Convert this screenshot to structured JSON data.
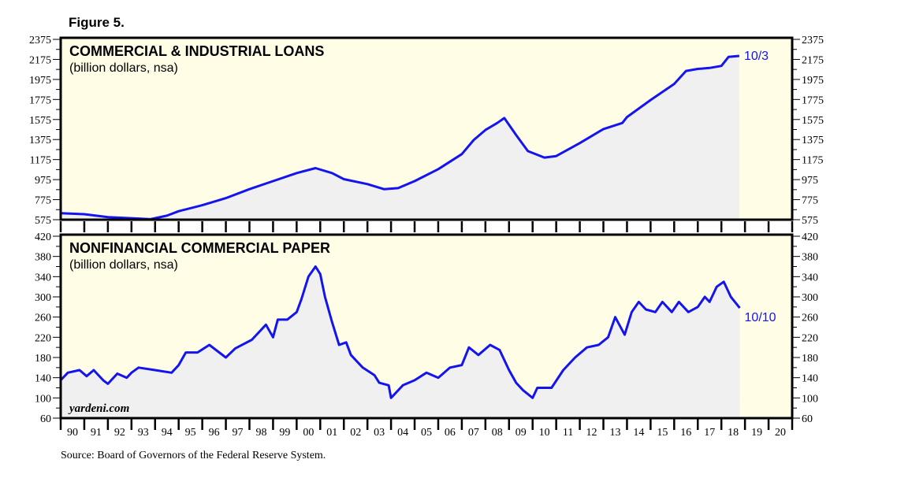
{
  "figure_title": "Figure 5.",
  "source": "Source: Board of Governors of the Federal Reserve System.",
  "watermark": "yardeni.com",
  "colors": {
    "line": "#1414ee",
    "plot_bg": "#fffde6",
    "fill": "#f0f0f0",
    "frame": "#000000"
  },
  "x_axis": {
    "range": [
      1990,
      2021
    ],
    "tick_labels": [
      "90",
      "91",
      "92",
      "93",
      "94",
      "95",
      "96",
      "97",
      "98",
      "99",
      "00",
      "01",
      "02",
      "03",
      "04",
      "05",
      "06",
      "07",
      "08",
      "09",
      "10",
      "11",
      "12",
      "13",
      "14",
      "15",
      "16",
      "17",
      "18",
      "19",
      "20"
    ]
  },
  "chart_data": [
    {
      "type": "area",
      "title": "COMMERCIAL & INDUSTRIAL LOANS",
      "subtitle": "(billion dollars, nsa)",
      "end_label": "10/3",
      "ylim": [
        575,
        2375
      ],
      "yticks": [
        "575",
        "775",
        "975",
        "1175",
        "1375",
        "1575",
        "1775",
        "1975",
        "2175",
        "2375"
      ],
      "grid": false,
      "x": [
        1990,
        1991,
        1992,
        1993,
        1993.8,
        1994.5,
        1995,
        1996,
        1997,
        1998,
        1999,
        2000,
        2000.8,
        2001.5,
        2002,
        2003,
        2003.7,
        2004.3,
        2005,
        2006,
        2007,
        2007.5,
        2008,
        2008.5,
        2008.8,
        2009.3,
        2009.8,
        2010.5,
        2011,
        2012,
        2013,
        2013.8,
        2014,
        2015,
        2016,
        2016.5,
        2017,
        2017.5,
        2018,
        2018.3,
        2018.76
      ],
      "y": [
        640,
        630,
        600,
        590,
        580,
        615,
        660,
        720,
        790,
        880,
        960,
        1040,
        1090,
        1040,
        980,
        930,
        880,
        890,
        960,
        1080,
        1230,
        1370,
        1470,
        1540,
        1590,
        1420,
        1260,
        1195,
        1210,
        1340,
        1480,
        1540,
        1600,
        1770,
        1930,
        2060,
        2080,
        2090,
        2110,
        2200,
        2210
      ]
    },
    {
      "type": "area",
      "title": "NONFINANCIAL COMMERCIAL PAPER",
      "subtitle": "(billion dollars, nsa)",
      "end_label": "10/10",
      "ylim": [
        60,
        420
      ],
      "yticks": [
        "60",
        "100",
        "140",
        "180",
        "220",
        "260",
        "300",
        "340",
        "380",
        "420"
      ],
      "grid": false,
      "x": [
        1990,
        1990.3,
        1990.8,
        1991.1,
        1991.4,
        1991.8,
        1992,
        1992.4,
        1992.8,
        1993,
        1993.3,
        1994,
        1994.7,
        1995,
        1995.3,
        1995.8,
        1996.3,
        1997,
        1997.4,
        1998.1,
        1998.7,
        1999,
        1999.2,
        1999.6,
        2000,
        2000.2,
        2000.5,
        2000.8,
        2001,
        2001.2,
        2001.5,
        2001.8,
        2002.1,
        2002.3,
        2002.8,
        2003.3,
        2003.5,
        2003.9,
        2004,
        2004.5,
        2005,
        2005.5,
        2006,
        2006.5,
        2007,
        2007.3,
        2007.7,
        2008.2,
        2008.6,
        2009,
        2009.3,
        2009.6,
        2010,
        2010.2,
        2010.8,
        2011.3,
        2011.8,
        2012.3,
        2012.8,
        2013.2,
        2013.5,
        2013.9,
        2014.2,
        2014.5,
        2014.8,
        2015.2,
        2015.5,
        2015.9,
        2016.2,
        2016.6,
        2017,
        2017.3,
        2017.5,
        2017.8,
        2018.1,
        2018.4,
        2018.78
      ],
      "y": [
        135,
        150,
        155,
        143,
        155,
        135,
        128,
        148,
        140,
        150,
        160,
        155,
        150,
        165,
        190,
        190,
        205,
        180,
        198,
        215,
        245,
        220,
        255,
        255,
        270,
        295,
        340,
        360,
        345,
        300,
        250,
        205,
        210,
        185,
        160,
        145,
        130,
        125,
        100,
        125,
        135,
        150,
        140,
        160,
        165,
        200,
        185,
        205,
        195,
        155,
        130,
        115,
        100,
        120,
        120,
        155,
        180,
        200,
        205,
        220,
        260,
        225,
        270,
        290,
        275,
        270,
        290,
        270,
        290,
        270,
        280,
        300,
        290,
        320,
        330,
        300,
        278
      ]
    }
  ]
}
